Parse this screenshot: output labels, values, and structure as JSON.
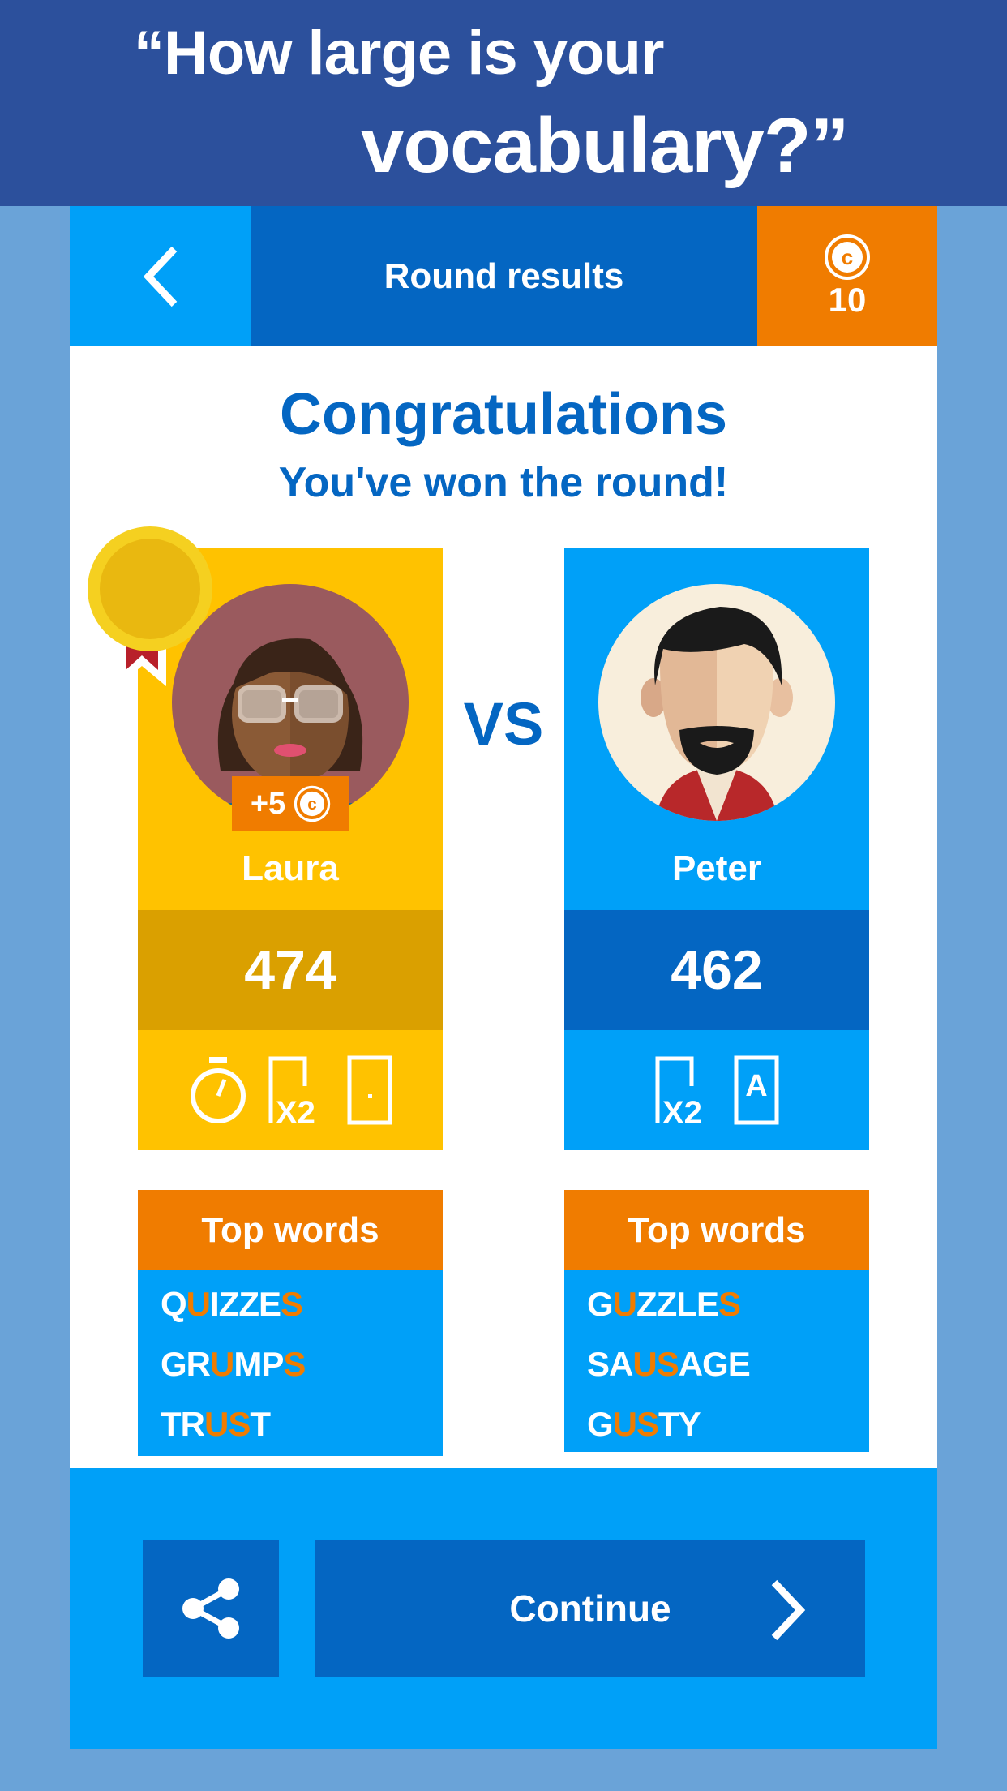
{
  "banner": {
    "line1": "“How large is your",
    "line2": "vocabulary?”"
  },
  "topbar": {
    "back_icon": "chevron-left-icon",
    "title": "Round results",
    "coin_icon": "coin-icon",
    "coins": "10"
  },
  "headline": {
    "title": "Congratulations",
    "subtitle": "You've won the round!"
  },
  "vs": "VS",
  "players": [
    {
      "name": "Laura",
      "score": "474",
      "bonus": "+5",
      "winner": true,
      "powerups": [
        "stopwatch-icon",
        "double-score-icon",
        "blank-tile-icon"
      ],
      "color": "#ffc200",
      "score_color": "#daa000"
    },
    {
      "name": "Peter",
      "score": "462",
      "powerups": [
        "double-score-icon",
        "letter-tile-icon"
      ],
      "tile_letter": "A",
      "double_label": "X2",
      "color": "#00a0f8",
      "score_color": "#0466c2"
    }
  ],
  "top_words": [
    {
      "label": "Top words",
      "words": [
        [
          {
            "t": "Q"
          },
          {
            "t": "U",
            "hl": true
          },
          {
            "t": "IZZE"
          },
          {
            "t": "S",
            "hl": true
          }
        ],
        [
          {
            "t": "GR"
          },
          {
            "t": "U",
            "hl": true
          },
          {
            "t": "MP"
          },
          {
            "t": "S",
            "hl": true
          }
        ],
        [
          {
            "t": "TR"
          },
          {
            "t": "US",
            "hl": true
          },
          {
            "t": "T"
          }
        ]
      ]
    },
    {
      "label": "Top words",
      "words": [
        [
          {
            "t": "G"
          },
          {
            "t": "U",
            "hl": true
          },
          {
            "t": "ZZLE"
          },
          {
            "t": "S",
            "hl": true
          }
        ],
        [
          {
            "t": "SA"
          },
          {
            "t": "US",
            "hl": true
          },
          {
            "t": "AGE"
          }
        ],
        [
          {
            "t": "G"
          },
          {
            "t": "US",
            "hl": true
          },
          {
            "t": "TY"
          }
        ]
      ]
    }
  ],
  "actions": {
    "share_icon": "share-icon",
    "continue": "Continue"
  },
  "colors": {
    "banner": "#2c509c",
    "dark_blue": "#0466c2",
    "light_blue": "#00a0f8",
    "orange": "#f07c00",
    "yellow": "#ffc200"
  }
}
